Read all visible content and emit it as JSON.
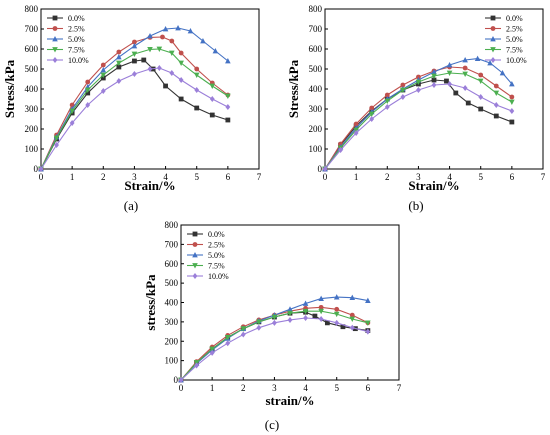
{
  "chart_data": [
    {
      "type": "line",
      "panel_label": "(a)",
      "xlabel": "Strain/%",
      "ylabel": "Stress/kPa",
      "xlim": [
        0,
        7
      ],
      "ylim": [
        0,
        800
      ],
      "xticks": [
        "0",
        "1",
        "2",
        "3",
        "4",
        "5",
        "6",
        "7"
      ],
      "yticks": [
        "0",
        "100",
        "200",
        "300",
        "400",
        "500",
        "600",
        "700",
        "800"
      ],
      "legend_position": "top-left",
      "grid": false,
      "series": [
        {
          "name": "0.0%",
          "color": "#333333",
          "marker": "square",
          "x": [
            0,
            0.5,
            1,
            1.5,
            2,
            2.5,
            3,
            3.3,
            3.6,
            4,
            4.5,
            5,
            5.5,
            6
          ],
          "y": [
            0,
            150,
            280,
            380,
            455,
            510,
            540,
            545,
            500,
            415,
            350,
            305,
            270,
            245
          ]
        },
        {
          "name": "2.5%",
          "color": "#c0504d",
          "marker": "circle",
          "x": [
            0,
            0.5,
            1,
            1.5,
            2,
            2.5,
            3,
            3.5,
            3.9,
            4.2,
            4.5,
            5,
            5.5,
            6
          ],
          "y": [
            0,
            170,
            320,
            435,
            520,
            585,
            635,
            658,
            660,
            640,
            580,
            500,
            430,
            370
          ]
        },
        {
          "name": "5.0%",
          "color": "#4472c4",
          "marker": "triangle-up",
          "x": [
            0,
            0.5,
            1,
            1.5,
            2,
            2.5,
            3,
            3.5,
            4,
            4.4,
            4.8,
            5.2,
            5.6,
            6
          ],
          "y": [
            0,
            160,
            300,
            410,
            495,
            560,
            615,
            665,
            700,
            705,
            690,
            640,
            590,
            540
          ]
        },
        {
          "name": "7.5%",
          "color": "#4caf50",
          "marker": "triangle-down",
          "x": [
            0,
            0.5,
            1,
            1.5,
            2,
            2.5,
            3,
            3.5,
            3.8,
            4.2,
            4.5,
            5,
            5.5,
            6
          ],
          "y": [
            0,
            155,
            290,
            395,
            470,
            530,
            575,
            598,
            600,
            580,
            530,
            470,
            415,
            365
          ]
        },
        {
          "name": "10.0%",
          "color": "#9b7fd9",
          "marker": "diamond",
          "x": [
            0,
            0.5,
            1,
            1.5,
            2,
            2.5,
            3,
            3.5,
            3.8,
            4.2,
            4.5,
            5,
            5.5,
            6
          ],
          "y": [
            0,
            120,
            230,
            320,
            390,
            440,
            475,
            500,
            505,
            480,
            445,
            395,
            350,
            310
          ]
        }
      ]
    },
    {
      "type": "line",
      "panel_label": "(b)",
      "xlabel": "Strain/%",
      "ylabel": "Stress/kPa",
      "xlim": [
        0,
        7
      ],
      "ylim": [
        0,
        800
      ],
      "xticks": [
        "0",
        "1",
        "2",
        "3",
        "4",
        "5",
        "6",
        "7"
      ],
      "yticks": [
        "0",
        "100",
        "200",
        "300",
        "400",
        "500",
        "600",
        "700",
        "800"
      ],
      "legend_position": "top-right",
      "grid": false,
      "series": [
        {
          "name": "0.0%",
          "color": "#333333",
          "marker": "square",
          "x": [
            0,
            0.5,
            1,
            1.5,
            2,
            2.5,
            3,
            3.5,
            3.9,
            4.2,
            4.6,
            5,
            5.5,
            6
          ],
          "y": [
            0,
            120,
            215,
            290,
            350,
            395,
            425,
            445,
            440,
            380,
            330,
            300,
            265,
            235
          ]
        },
        {
          "name": "2.5%",
          "color": "#c0504d",
          "marker": "circle",
          "x": [
            0,
            0.5,
            1,
            1.5,
            2,
            2.5,
            3,
            3.5,
            4,
            4.5,
            5,
            5.5,
            6
          ],
          "y": [
            0,
            125,
            225,
            305,
            370,
            420,
            460,
            490,
            510,
            505,
            470,
            415,
            360
          ]
        },
        {
          "name": "5.0%",
          "color": "#4472c4",
          "marker": "triangle-up",
          "x": [
            0,
            0.5,
            1,
            1.5,
            2,
            2.5,
            3,
            3.5,
            4,
            4.5,
            4.9,
            5.3,
            5.7,
            6
          ],
          "y": [
            0,
            110,
            205,
            285,
            350,
            400,
            445,
            485,
            520,
            545,
            552,
            530,
            480,
            425
          ]
        },
        {
          "name": "7.5%",
          "color": "#4caf50",
          "marker": "triangle-down",
          "x": [
            0,
            0.5,
            1,
            1.5,
            2,
            2.5,
            3,
            3.5,
            4,
            4.5,
            5,
            5.5,
            6
          ],
          "y": [
            0,
            105,
            195,
            275,
            340,
            395,
            435,
            465,
            480,
            475,
            440,
            380,
            335
          ]
        },
        {
          "name": "10.0%",
          "color": "#9b7fd9",
          "marker": "diamond",
          "x": [
            0,
            0.5,
            1,
            1.5,
            2,
            2.5,
            3,
            3.5,
            4,
            4.5,
            5,
            5.5,
            6
          ],
          "y": [
            0,
            95,
            180,
            250,
            310,
            360,
            395,
            420,
            425,
            405,
            360,
            320,
            290
          ]
        }
      ]
    },
    {
      "type": "line",
      "panel_label": "(c)",
      "xlabel": "strain/%",
      "ylabel": "stress/kPa",
      "xlim": [
        0,
        7
      ],
      "ylim": [
        0,
        800
      ],
      "xticks": [
        "0",
        "1",
        "2",
        "3",
        "4",
        "5",
        "6",
        "7"
      ],
      "yticks": [
        "0",
        "100",
        "200",
        "300",
        "400",
        "500",
        "600",
        "700",
        "800"
      ],
      "legend_position": "top-left",
      "grid": false,
      "series": [
        {
          "name": "0.0%",
          "color": "#333333",
          "marker": "square",
          "x": [
            0,
            0.5,
            1,
            1.5,
            2,
            2.5,
            3,
            3.5,
            4,
            4.3,
            4.7,
            5.2,
            5.6,
            6
          ],
          "y": [
            0,
            90,
            160,
            220,
            265,
            300,
            325,
            345,
            350,
            330,
            295,
            275,
            265,
            255
          ]
        },
        {
          "name": "2.5%",
          "color": "#c0504d",
          "marker": "circle",
          "x": [
            0,
            0.5,
            1,
            1.5,
            2,
            2.5,
            3,
            3.5,
            4,
            4.5,
            5,
            5.5,
            6
          ],
          "y": [
            0,
            95,
            170,
            230,
            275,
            310,
            335,
            355,
            370,
            375,
            365,
            335,
            295
          ]
        },
        {
          "name": "5.0%",
          "color": "#4472c4",
          "marker": "triangle-up",
          "x": [
            0,
            0.5,
            1,
            1.5,
            2,
            2.5,
            3,
            3.5,
            4,
            4.5,
            5,
            5.5,
            6
          ],
          "y": [
            0,
            85,
            155,
            215,
            265,
            305,
            335,
            365,
            395,
            420,
            428,
            425,
            410
          ]
        },
        {
          "name": "7.5%",
          "color": "#4caf50",
          "marker": "triangle-down",
          "x": [
            0,
            0.5,
            1,
            1.5,
            2,
            2.5,
            3,
            3.5,
            4,
            4.5,
            5,
            5.5,
            6
          ],
          "y": [
            0,
            90,
            160,
            220,
            265,
            300,
            325,
            345,
            355,
            355,
            340,
            315,
            295
          ]
        },
        {
          "name": "10.0%",
          "color": "#9b7fd9",
          "marker": "diamond",
          "x": [
            0,
            0.5,
            1,
            1.5,
            2,
            2.5,
            3,
            3.5,
            4,
            4.5,
            5,
            5.5,
            6
          ],
          "y": [
            0,
            75,
            140,
            190,
            235,
            270,
            295,
            310,
            320,
            315,
            295,
            270,
            250
          ]
        }
      ]
    }
  ]
}
